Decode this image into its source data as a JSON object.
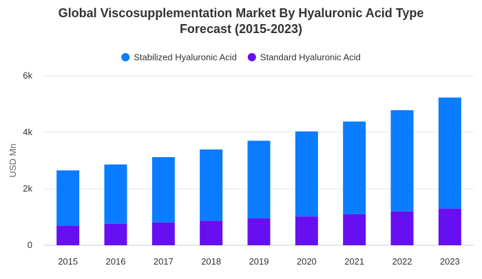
{
  "chart_data": {
    "type": "bar",
    "stacked": true,
    "title_lines": [
      "Global Viscosupplementation Market By Hyaluronic Acid Type",
      "Forecast (2015-2023)"
    ],
    "xlabel": "",
    "ylabel": "USD Mn",
    "categories": [
      "2015",
      "2016",
      "2017",
      "2018",
      "2019",
      "2020",
      "2021",
      "2022",
      "2023"
    ],
    "series": [
      {
        "name": "Standard Hyaluronic Acid",
        "color": "#6610f2",
        "values": [
          700,
          760,
          810,
          870,
          950,
          1020,
          1100,
          1200,
          1300
        ]
      },
      {
        "name": "Stabilized Hyaluronic Acid",
        "color": "#0a7cff",
        "values": [
          1950,
          2100,
          2310,
          2520,
          2750,
          3010,
          3280,
          3580,
          3930
        ]
      }
    ],
    "legend_order": [
      1,
      0
    ],
    "legend_position": "top-center",
    "ylim": [
      0,
      6000
    ],
    "yticks": [
      0,
      2000,
      4000,
      6000
    ],
    "ytick_labels": [
      "0",
      "2k",
      "4k",
      "6k"
    ],
    "grid": true
  }
}
